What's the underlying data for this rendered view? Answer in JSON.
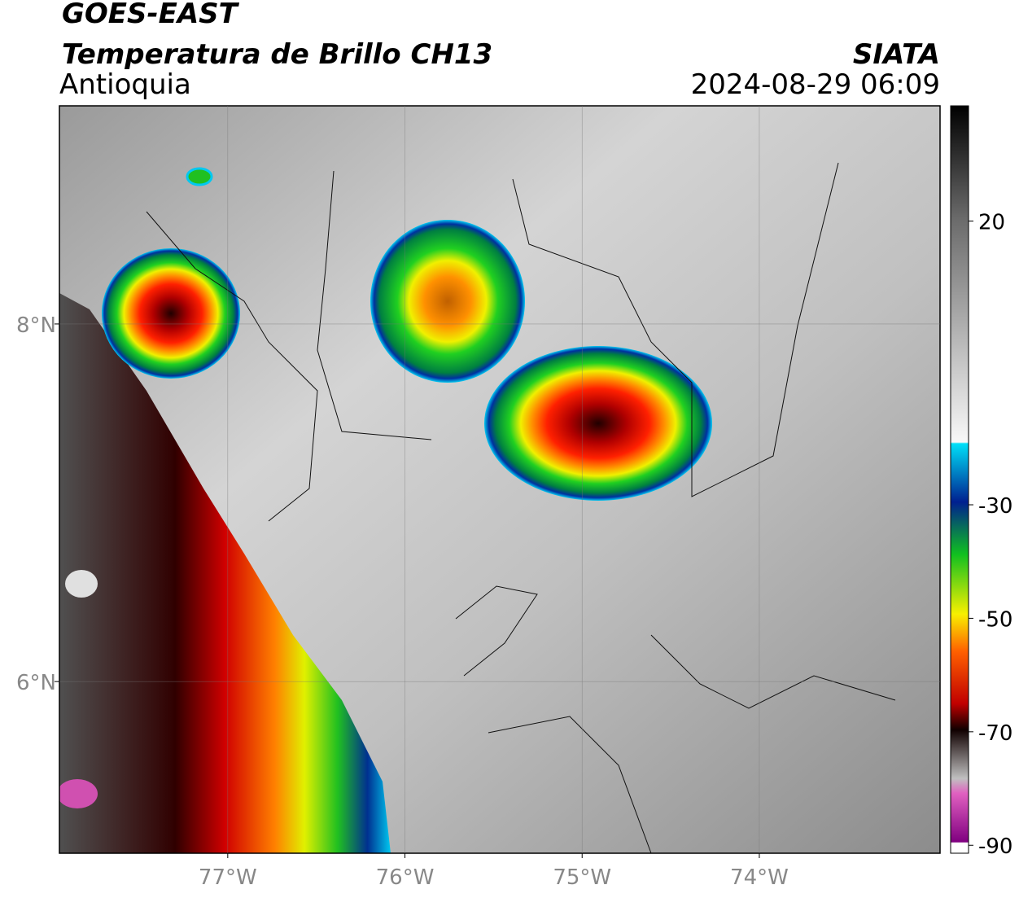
{
  "header": {
    "satellite": "GOES-EAST",
    "product": "Temperatura de Brillo CH13",
    "region": "Antioquia",
    "source": "SIATA",
    "datetime": "2024-08-29 06:09"
  },
  "map": {
    "xlim": [
      -77.95,
      -72.98
    ],
    "ylim": [
      5.04,
      9.22
    ],
    "xticks": [
      {
        "value": -77,
        "label": "77°W"
      },
      {
        "value": -76,
        "label": "76°W"
      },
      {
        "value": -75,
        "label": "75°W"
      },
      {
        "value": -74,
        "label": "74°W"
      }
    ],
    "yticks": [
      {
        "value": 8,
        "label": "8°N"
      },
      {
        "value": 6,
        "label": "6°N"
      }
    ]
  },
  "colorbar": {
    "ylim": [
      -91.4,
      40.3
    ],
    "yticks": [
      20,
      -30,
      -50,
      -70,
      -90
    ]
  }
}
